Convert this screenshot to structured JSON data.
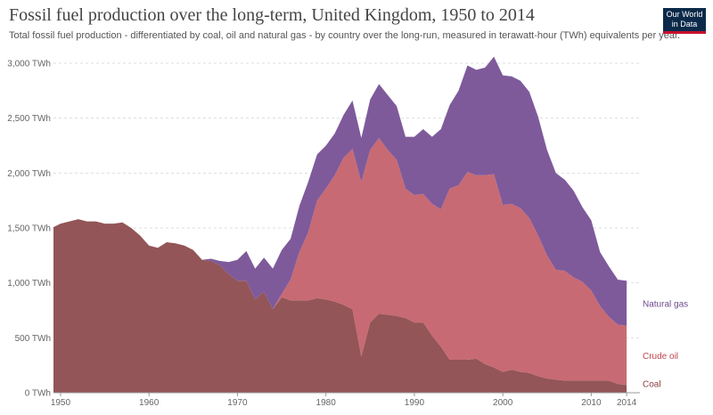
{
  "header": {
    "title": "Fossil fuel production over the long-term, United Kingdom, 1950 to 2014",
    "subtitle": "Total fossil fuel production - differentiated by coal, oil and natural gas - by country over the long-run, measured in terawatt-hour (TWh) equivalents per year.",
    "logo_line1": "Our World",
    "logo_line2": "in Data"
  },
  "colors": {
    "coal": "#935557",
    "oil": "#c86a73",
    "gas": "#7e5a9b",
    "coal_label": "#8b3c40",
    "oil_label": "#c0464f",
    "gas_label": "#6d4a8e",
    "grid": "#dddddd",
    "axis": "#999999"
  },
  "chart_data": {
    "type": "area",
    "stacked": true,
    "title": "Fossil fuel production over the long-term, United Kingdom, 1950 to 2014",
    "xlabel": "",
    "ylabel": "",
    "xlim": [
      1949.2,
      2015.5
    ],
    "ylim": [
      0,
      3000
    ],
    "y_unit": "TWh",
    "y_ticks": [
      0,
      500,
      1000,
      1500,
      2000,
      2500,
      3000
    ],
    "y_tick_labels": [
      "0 TWh",
      "500 TWh",
      "1,000 TWh",
      "1,500 TWh",
      "2,000 TWh",
      "2,500 TWh",
      "3,000 TWh"
    ],
    "x_ticks": [
      1950,
      1960,
      1970,
      1980,
      1990,
      2000,
      2010,
      2014
    ],
    "x_tick_labels": [
      "1950",
      "1960",
      "1970",
      "1980",
      "1990",
      "2000",
      "2010",
      "2014"
    ],
    "grid": "horizontal dotted",
    "legend": "labels at right end of series",
    "x": [
      1949,
      1950,
      1951,
      1952,
      1953,
      1954,
      1955,
      1956,
      1957,
      1958,
      1959,
      1960,
      1961,
      1962,
      1963,
      1964,
      1965,
      1966,
      1967,
      1968,
      1969,
      1970,
      1971,
      1972,
      1973,
      1974,
      1975,
      1976,
      1977,
      1978,
      1979,
      1980,
      1981,
      1982,
      1983,
      1984,
      1985,
      1986,
      1987,
      1988,
      1989,
      1990,
      1991,
      1992,
      1993,
      1994,
      1995,
      1996,
      1997,
      1998,
      1999,
      2000,
      2001,
      2002,
      2003,
      2004,
      2005,
      2006,
      2007,
      2008,
      2009,
      2010,
      2011,
      2012,
      2013,
      2014
    ],
    "series": [
      {
        "name": "Coal",
        "values": [
          1500,
          1540,
          1560,
          1580,
          1560,
          1560,
          1540,
          1540,
          1550,
          1500,
          1430,
          1340,
          1320,
          1370,
          1360,
          1340,
          1300,
          1210,
          1200,
          1160,
          1080,
          1020,
          1020,
          850,
          920,
          760,
          870,
          840,
          840,
          840,
          860,
          850,
          830,
          800,
          760,
          330,
          640,
          720,
          710,
          700,
          680,
          640,
          640,
          520,
          420,
          300,
          300,
          300,
          310,
          260,
          230,
          190,
          210,
          190,
          180,
          150,
          130,
          120,
          110,
          110,
          110,
          110,
          110,
          110,
          80,
          70
        ]
      },
      {
        "name": "Crude oil",
        "values": [
          0,
          0,
          0,
          0,
          0,
          0,
          0,
          0,
          0,
          0,
          0,
          0,
          0,
          0,
          0,
          0,
          0,
          0,
          0,
          0,
          0,
          0,
          0,
          0,
          0,
          0,
          30,
          190,
          440,
          620,
          890,
          1010,
          1150,
          1340,
          1460,
          1590,
          1570,
          1600,
          1500,
          1420,
          1180,
          1160,
          1170,
          1200,
          1250,
          1560,
          1590,
          1710,
          1670,
          1720,
          1760,
          1520,
          1510,
          1490,
          1410,
          1280,
          1120,
          1000,
          1000,
          940,
          900,
          820,
          680,
          580,
          540,
          540
        ]
      },
      {
        "name": "Natural gas",
        "values": [
          0,
          0,
          0,
          0,
          0,
          0,
          0,
          0,
          0,
          0,
          0,
          0,
          0,
          0,
          0,
          0,
          0,
          0,
          20,
          40,
          110,
          190,
          270,
          280,
          310,
          370,
          400,
          370,
          420,
          460,
          420,
          390,
          380,
          390,
          440,
          400,
          460,
          490,
          500,
          490,
          470,
          530,
          590,
          610,
          730,
          760,
          860,
          970,
          960,
          980,
          1070,
          1180,
          1160,
          1160,
          1150,
          1080,
          960,
          880,
          830,
          790,
          680,
          640,
          490,
          460,
          410,
          410
        ]
      }
    ]
  }
}
